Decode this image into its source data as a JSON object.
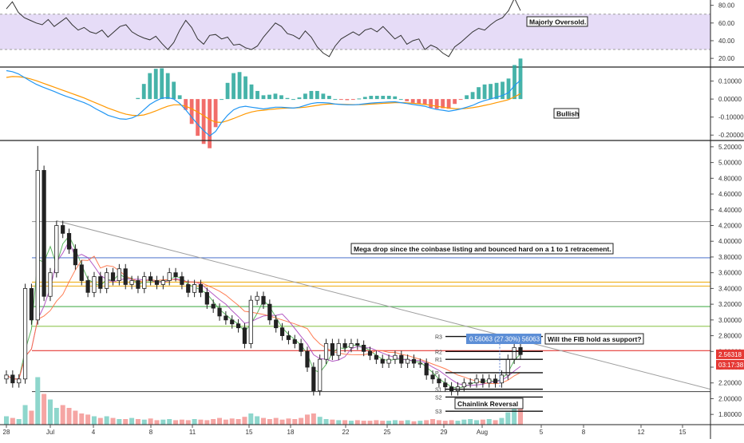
{
  "chart_data": [
    {
      "type": "line",
      "panel": "rsi",
      "yticks": [
        "80.00",
        "60.00",
        "40.00",
        "20.00"
      ],
      "yrange": [
        12,
        86
      ],
      "band": [
        30,
        70
      ],
      "annotation": "Majorly Oversold.",
      "series": [
        {
          "values": [
            76,
            84,
            72,
            66,
            63,
            60,
            58,
            64,
            56,
            61,
            66,
            58,
            52,
            55,
            50,
            48,
            52,
            44,
            50,
            56,
            58,
            50,
            46,
            43,
            41,
            45,
            37,
            30,
            38,
            52,
            63,
            55,
            42,
            36,
            46,
            47,
            42,
            44,
            35,
            36,
            32,
            30,
            34,
            44,
            52,
            60,
            56,
            48,
            46,
            42,
            51,
            44,
            33,
            26,
            22,
            34,
            42,
            46,
            50,
            46,
            52,
            54,
            50,
            56,
            49,
            42,
            46,
            36,
            40,
            42,
            30,
            35,
            32,
            26,
            22,
            33,
            38,
            44,
            50,
            54,
            52,
            58,
            63,
            66,
            74,
            88,
            74
          ]
        }
      ]
    },
    {
      "type": "bar",
      "panel": "macd",
      "yticks": [
        "0.10000",
        "0.00000",
        "-0.10000",
        "-0.20000"
      ],
      "yrange": [
        -0.23,
        0.16
      ],
      "annotation": "Bullish",
      "colors": {
        "macd": "#2196f3",
        "signal": "#ff9800",
        "hist_pos": "#26a69a",
        "hist_neg": "#ef5350"
      },
      "series": [
        {
          "values": [
            0.158,
            0.152,
            0.14,
            0.12,
            0.1,
            0.082,
            0.068,
            0.055,
            0.042,
            0.028,
            0.015,
            0.004,
            -0.008,
            -0.02,
            -0.035,
            -0.055,
            -0.072,
            -0.09,
            -0.1,
            -0.11,
            -0.112,
            -0.105,
            -0.09,
            -0.06,
            -0.03,
            -0.01,
            0.005,
            0.008,
            0.0,
            -0.025,
            -0.06,
            -0.1,
            -0.14,
            -0.175,
            -0.205,
            -0.18,
            -0.13,
            -0.09,
            -0.06,
            -0.045,
            -0.04,
            -0.045,
            -0.05,
            -0.055,
            -0.05,
            -0.045,
            -0.045,
            -0.048,
            -0.05,
            -0.045,
            -0.035,
            -0.025,
            -0.02,
            -0.02,
            -0.022,
            -0.028,
            -0.03,
            -0.032,
            -0.032,
            -0.03,
            -0.026,
            -0.022,
            -0.02,
            -0.018,
            -0.016,
            -0.015,
            -0.02,
            -0.025,
            -0.03,
            -0.035,
            -0.04,
            -0.05,
            -0.058,
            -0.062,
            -0.068,
            -0.062,
            -0.055,
            -0.045,
            -0.035,
            -0.02,
            -0.008,
            0.0,
            0.01,
            0.02,
            0.035,
            0.075,
            0.105
          ]
        },
        {
          "values": [
            0.12,
            0.125,
            0.124,
            0.12,
            0.112,
            0.102,
            0.09,
            0.078,
            0.066,
            0.054,
            0.042,
            0.03,
            0.018,
            0.006,
            -0.008,
            -0.022,
            -0.036,
            -0.05,
            -0.062,
            -0.074,
            -0.084,
            -0.09,
            -0.092,
            -0.088,
            -0.078,
            -0.066,
            -0.052,
            -0.04,
            -0.032,
            -0.032,
            -0.04,
            -0.054,
            -0.072,
            -0.092,
            -0.114,
            -0.128,
            -0.13,
            -0.12,
            -0.108,
            -0.095,
            -0.082,
            -0.072,
            -0.065,
            -0.062,
            -0.058,
            -0.055,
            -0.052,
            -0.05,
            -0.05,
            -0.048,
            -0.045,
            -0.04,
            -0.035,
            -0.03,
            -0.028,
            -0.028,
            -0.029,
            -0.03,
            -0.031,
            -0.031,
            -0.03,
            -0.028,
            -0.026,
            -0.024,
            -0.022,
            -0.02,
            -0.02,
            -0.021,
            -0.023,
            -0.026,
            -0.03,
            -0.034,
            -0.04,
            -0.045,
            -0.05,
            -0.053,
            -0.054,
            -0.052,
            -0.048,
            -0.042,
            -0.035,
            -0.028,
            -0.02,
            -0.012,
            -0.003,
            0.012,
            0.03
          ]
        }
      ]
    },
    {
      "type": "bar",
      "panel": "price",
      "x_labels": [
        "28",
        "Jul",
        "4",
        "8",
        "11",
        "15",
        "18",
        "22",
        "25",
        "29",
        "Aug",
        "5",
        "8",
        "12",
        "15"
      ],
      "yticks": [
        "5.20000",
        "5.00000",
        "4.80000",
        "4.60000",
        "4.40000",
        "4.20000",
        "4.00000",
        "3.80000",
        "3.60000",
        "3.40000",
        "3.20000",
        "3.00000",
        "2.80000",
        "2.60000",
        "2.40000",
        "2.20000",
        "2.00000",
        "1.80000"
      ],
      "yrange": [
        1.67,
        5.28
      ],
      "price_badge": "2.56318",
      "countdown_badge": "03:17:38",
      "measure_label": "0.56063 (27.30%) 56063",
      "pivot_labels": [
        "R3",
        "R2",
        "R1",
        "P",
        "S1",
        "S2",
        "S3"
      ],
      "pivot_levels": [
        2.79,
        2.6,
        2.5,
        2.33,
        2.12,
        2.02,
        1.84
      ],
      "horizontal_levels": [
        {
          "y": 4.25,
          "color": "#9e9e9e"
        },
        {
          "y": 3.79,
          "color": "#5c7fd0"
        },
        {
          "y": 3.48,
          "color": "#f0b429"
        },
        {
          "y": 3.43,
          "color": "#f0b429"
        },
        {
          "y": 3.17,
          "color": "#4caf50"
        },
        {
          "y": 2.92,
          "color": "#9ccc65"
        },
        {
          "y": 2.61,
          "color": "#e53935"
        },
        {
          "y": 2.09,
          "color": "#555555"
        }
      ],
      "trendline": {
        "from": [
          4.26
        ],
        "to": [
          2.12
        ]
      },
      "annotations": [
        "Mega drop since the coinbase listing and bounced hard on a 1 to 1 retracement.",
        "Will the FIB hold as support?",
        "Chainlink Reversal"
      ],
      "colors": {
        "up": "#26a69a",
        "down": "#ef5350",
        "candle": "#222222",
        "ma_fast": "#4caf50",
        "ma_slow": "#ff7043",
        "ma_mid": "#ab47bc"
      },
      "series": [
        {
          "name": "close",
          "values": [
            2.3,
            2.2,
            2.25,
            3.4,
            3.0,
            4.9,
            3.3,
            3.6,
            4.2,
            4.1,
            3.9,
            3.7,
            3.5,
            3.35,
            3.55,
            3.4,
            3.6,
            3.5,
            3.65,
            3.45,
            3.5,
            3.4,
            3.55,
            3.5,
            3.45,
            3.5,
            3.6,
            3.55,
            3.45,
            3.35,
            3.45,
            3.35,
            3.2,
            3.15,
            3.05,
            3.0,
            2.95,
            2.9,
            2.7,
            3.25,
            3.3,
            3.2,
            3.0,
            2.9,
            2.8,
            2.75,
            2.7,
            2.6,
            2.4,
            2.1,
            2.5,
            2.7,
            2.55,
            2.7,
            2.65,
            2.7,
            2.68,
            2.6,
            2.55,
            2.5,
            2.45,
            2.5,
            2.55,
            2.45,
            2.5,
            2.45,
            2.45,
            2.3,
            2.25,
            2.2,
            2.15,
            2.1,
            2.15,
            2.2,
            2.2,
            2.25,
            2.2,
            2.25,
            2.2,
            2.3,
            2.5,
            2.65,
            2.56
          ]
        },
        {
          "name": "volume",
          "values": [
            0.15,
            0.12,
            0.1,
            0.35,
            0.25,
            0.85,
            0.55,
            0.45,
            0.3,
            0.35,
            0.3,
            0.25,
            0.2,
            0.18,
            0.15,
            0.12,
            0.15,
            0.12,
            0.1,
            0.1,
            0.12,
            0.1,
            0.09,
            0.11,
            0.08,
            0.09,
            0.1,
            0.08,
            0.09,
            0.08,
            0.1,
            0.09,
            0.08,
            0.1,
            0.12,
            0.09,
            0.11,
            0.1,
            0.14,
            0.2,
            0.15,
            0.12,
            0.1,
            0.12,
            0.09,
            0.11,
            0.1,
            0.12,
            0.18,
            0.2,
            0.14,
            0.1,
            0.09,
            0.08,
            0.08,
            0.07,
            0.08,
            0.07,
            0.07,
            0.08,
            0.07,
            0.07,
            0.08,
            0.07,
            0.08,
            0.06,
            0.07,
            0.08,
            0.1,
            0.08,
            0.07,
            0.08,
            0.07,
            0.09,
            0.1,
            0.08,
            0.09,
            0.1,
            0.08,
            0.12,
            0.22,
            0.3,
            0.28
          ]
        }
      ]
    }
  ]
}
